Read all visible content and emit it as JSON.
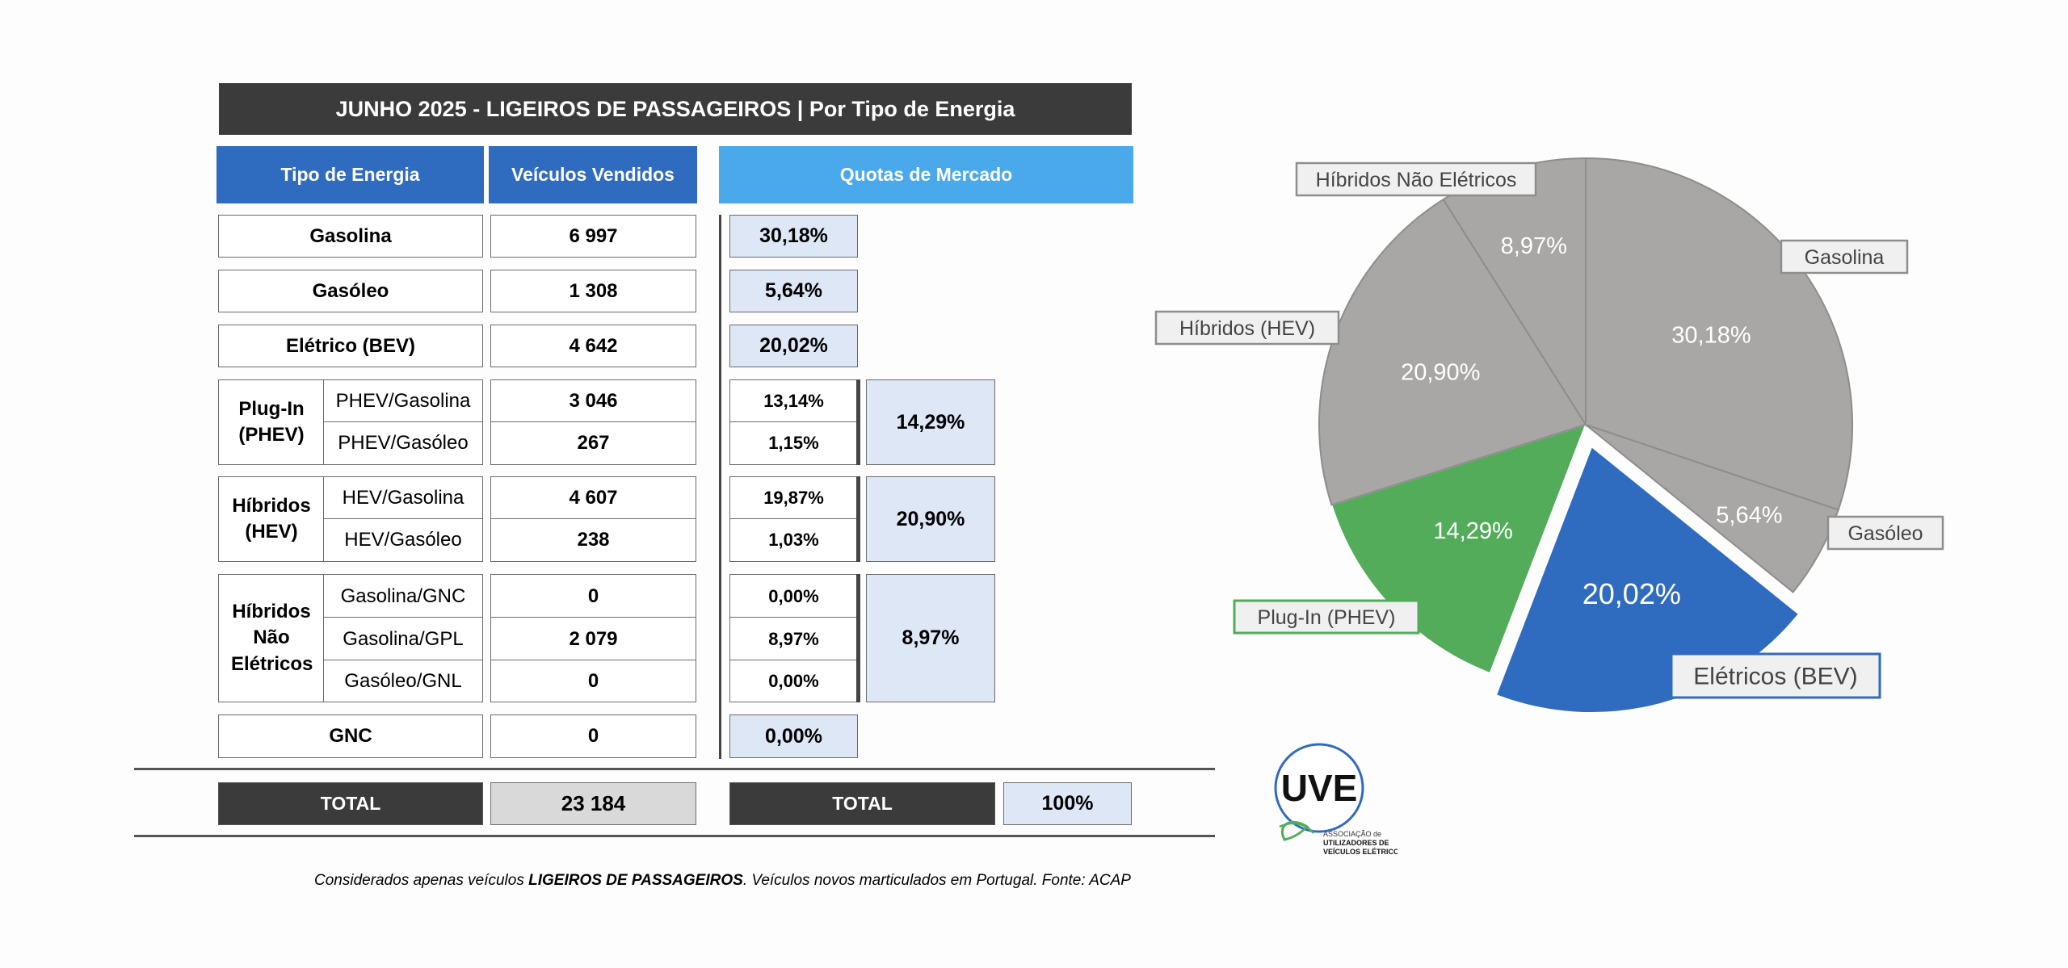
{
  "title": "JUNHO 2025 - LIGEIROS DE PASSAGEIROS | Por Tipo de Energia",
  "headers": {
    "tipo": "Tipo de Energia",
    "vendidos": "Veículos Vendidos",
    "quotas": "Quotas de Mercado"
  },
  "rows": {
    "gasolina": {
      "label": "Gasolina",
      "value": "6 997",
      "pct": "30,18%"
    },
    "gasoleo": {
      "label": "Gasóleo",
      "value": "1 308",
      "pct": "5,64%"
    },
    "bev": {
      "label": "Elétrico (BEV)",
      "value": "4 642",
      "pct": "20,02%"
    },
    "phev": {
      "label": "Plug-In (PHEV)",
      "group_pct": "14,29%",
      "subs": [
        {
          "label": "PHEV/Gasolina",
          "value": "3 046",
          "pct": "13,14%"
        },
        {
          "label": "PHEV/Gasóleo",
          "value": "267",
          "pct": "1,15%"
        }
      ]
    },
    "hev": {
      "label": "Híbridos (HEV)",
      "group_pct": "20,90%",
      "subs": [
        {
          "label": "HEV/Gasolina",
          "value": "4 607",
          "pct": "19,87%"
        },
        {
          "label": "HEV/Gasóleo",
          "value": "238",
          "pct": "1,03%"
        }
      ]
    },
    "hne": {
      "label": "Híbridos Não Elétricos",
      "group_pct": "8,97%",
      "subs": [
        {
          "label": "Gasolina/GNC",
          "value": "0",
          "pct": "0,00%"
        },
        {
          "label": "Gasolina/GPL",
          "value": "2 079",
          "pct": "8,97%"
        },
        {
          "label": "Gasóleo/GNL",
          "value": "0",
          "pct": "0,00%"
        }
      ]
    },
    "gnc": {
      "label": "GNC",
      "value": "0",
      "pct": "0,00%"
    }
  },
  "total": {
    "label": "TOTAL",
    "value": "23 184",
    "pct_label": "TOTAL",
    "pct": "100%"
  },
  "footnote": {
    "pre": "Considerados apenas veículos ",
    "bold": "LIGEIROS DE PASSAGEIROS",
    "post": ". Veículos novos marticulados em Portugal. Fonte: ACAP"
  },
  "logo": {
    "initials": "UVE",
    "lines": [
      "ASSOCIAÇÃO de",
      "UTILIZADORES DE",
      "VEÍCULOS ELÉTRICOS"
    ]
  },
  "chart_data": {
    "type": "pie",
    "exploded": "Elétricos (BEV)",
    "slices": [
      {
        "name": "Gasolina",
        "value": 30.18,
        "label": "30,18%",
        "color": "#a8a7a5"
      },
      {
        "name": "Gasóleo",
        "value": 5.64,
        "label": "5,64%",
        "color": "#a8a7a5"
      },
      {
        "name": "Elétricos (BEV)",
        "value": 20.02,
        "label": "20,02%",
        "color": "#2f6bbf"
      },
      {
        "name": "Plug-In (PHEV)",
        "value": 14.29,
        "label": "14,29%",
        "color": "#52ac5a"
      },
      {
        "name": "Híbridos (HEV)",
        "value": 20.9,
        "label": "20,90%",
        "color": "#a8a7a5"
      },
      {
        "name": "Híbridos Não Elétricos",
        "value": 8.97,
        "label": "8,97%",
        "color": "#a8a7a5"
      }
    ]
  }
}
